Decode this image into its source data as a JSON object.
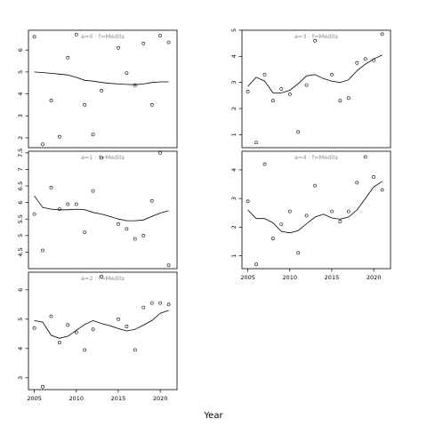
{
  "figure": {
    "xlabel": "Year"
  },
  "chart_data": [
    {
      "type": "scatter",
      "panel_label": "a=0  :  f=Medits",
      "x_ticks": [
        2005,
        2010,
        2015,
        2020
      ],
      "y_ticks": [
        2,
        3,
        4,
        5,
        6
      ],
      "xlim": [
        2004.3,
        2022.0
      ],
      "ylim": [
        1.55,
        6.9
      ],
      "show_x_axis": false,
      "series": [
        {
          "kind": "points",
          "x": [
            2005,
            2006,
            2007,
            2008,
            2009,
            2010,
            2011,
            2012,
            2013,
            2015,
            2016,
            2017,
            2018,
            2019,
            2020,
            2021
          ],
          "y": [
            6.6,
            1.7,
            3.7,
            2.05,
            5.65,
            6.7,
            3.5,
            2.15,
            4.15,
            6.1,
            4.95,
            4.4,
            6.3,
            3.5,
            6.65,
            6.35
          ]
        },
        {
          "kind": "line",
          "x": [
            2005,
            2006,
            2007,
            2008,
            2009,
            2010,
            2011,
            2012,
            2013,
            2014,
            2015,
            2016,
            2017,
            2018,
            2019,
            2020,
            2021
          ],
          "y": [
            5.0,
            4.97,
            4.94,
            4.9,
            4.86,
            4.75,
            4.62,
            4.58,
            4.52,
            4.48,
            4.45,
            4.43,
            4.42,
            4.45,
            4.52,
            4.55,
            4.55
          ]
        }
      ]
    },
    {
      "type": "scatter",
      "panel_label": "a=1  :  f=Medits",
      "x_ticks": [
        2005,
        2010,
        2015,
        2020
      ],
      "y_ticks": [
        4.5,
        5.0,
        5.5,
        6.0,
        6.5,
        7.0,
        7.5
      ],
      "xlim": [
        2004.3,
        2022.0
      ],
      "ylim": [
        4.0,
        7.55
      ],
      "show_x_axis": false,
      "series": [
        {
          "kind": "points",
          "x": [
            2005,
            2006,
            2007,
            2008,
            2009,
            2010,
            2011,
            2012,
            2013,
            2015,
            2016,
            2017,
            2018,
            2019,
            2020,
            2021
          ],
          "y": [
            5.65,
            4.55,
            6.45,
            5.8,
            5.95,
            5.95,
            5.1,
            6.35,
            7.35,
            5.35,
            5.2,
            4.9,
            5.0,
            6.05,
            7.5,
            4.1
          ]
        },
        {
          "kind": "line",
          "x": [
            2005,
            2006,
            2007,
            2008,
            2009,
            2010,
            2011,
            2012,
            2013,
            2014,
            2015,
            2016,
            2017,
            2018,
            2019,
            2020,
            2021
          ],
          "y": [
            6.2,
            5.85,
            5.8,
            5.78,
            5.78,
            5.8,
            5.78,
            5.7,
            5.65,
            5.58,
            5.5,
            5.45,
            5.45,
            5.47,
            5.58,
            5.68,
            5.75
          ]
        }
      ]
    },
    {
      "type": "scatter",
      "panel_label": "a=2  :  f=Medits",
      "x_ticks": [
        2005,
        2010,
        2015,
        2020
      ],
      "y_ticks": [
        3,
        4,
        5,
        6
      ],
      "xlim": [
        2004.3,
        2022.0
      ],
      "ylim": [
        2.6,
        6.6
      ],
      "show_x_axis": true,
      "series": [
        {
          "kind": "points",
          "x": [
            2005,
            2006,
            2007,
            2008,
            2009,
            2010,
            2011,
            2012,
            2013,
            2015,
            2016,
            2017,
            2018,
            2019,
            2020,
            2021
          ],
          "y": [
            4.7,
            2.7,
            5.1,
            4.2,
            4.8,
            4.55,
            3.95,
            4.65,
            6.45,
            5.0,
            4.75,
            3.95,
            5.4,
            5.55,
            5.55,
            5.5
          ]
        },
        {
          "kind": "line",
          "x": [
            2005,
            2006,
            2007,
            2008,
            2009,
            2010,
            2011,
            2012,
            2013,
            2014,
            2015,
            2016,
            2017,
            2018,
            2019,
            2020,
            2021
          ],
          "y": [
            4.95,
            4.9,
            4.45,
            4.35,
            4.42,
            4.62,
            4.82,
            4.95,
            4.85,
            4.78,
            4.68,
            4.6,
            4.65,
            4.8,
            4.95,
            5.2,
            5.3
          ]
        }
      ]
    },
    {
      "type": "scatter",
      "panel_label": "a=3  :  f=Medits",
      "x_ticks": [
        2005,
        2010,
        2015,
        2020
      ],
      "y_ticks": [
        1,
        2,
        3,
        4,
        5
      ],
      "xlim": [
        2004.3,
        2022.0
      ],
      "ylim": [
        0.5,
        5.0
      ],
      "show_x_axis": false,
      "series": [
        {
          "kind": "points",
          "x": [
            2005,
            2006,
            2007,
            2008,
            2009,
            2010,
            2011,
            2012,
            2013,
            2015,
            2016,
            2017,
            2018,
            2019,
            2020,
            2021
          ],
          "y": [
            2.65,
            0.7,
            3.3,
            2.3,
            2.75,
            2.55,
            1.1,
            2.9,
            4.6,
            3.3,
            2.3,
            2.4,
            3.75,
            3.9,
            3.85,
            4.85
          ]
        },
        {
          "kind": "line",
          "x": [
            2005,
            2006,
            2007,
            2008,
            2009,
            2010,
            2011,
            2012,
            2013,
            2014,
            2015,
            2016,
            2017,
            2018,
            2019,
            2020,
            2021
          ],
          "y": [
            2.85,
            3.2,
            3.05,
            2.6,
            2.6,
            2.7,
            2.95,
            3.25,
            3.3,
            3.15,
            3.05,
            3.0,
            3.1,
            3.45,
            3.7,
            3.9,
            4.05
          ]
        }
      ]
    },
    {
      "type": "scatter",
      "panel_label": "a=4  :  f=Medits",
      "x_ticks": [
        2005,
        2010,
        2015,
        2020
      ],
      "y_ticks": [
        1,
        2,
        3,
        4
      ],
      "xlim": [
        2004.3,
        2022.0
      ],
      "ylim": [
        0.55,
        4.65
      ],
      "show_x_axis": true,
      "series": [
        {
          "kind": "points",
          "x": [
            2005,
            2006,
            2007,
            2008,
            2009,
            2010,
            2011,
            2012,
            2013,
            2015,
            2016,
            2017,
            2018,
            2019,
            2020,
            2021
          ],
          "y": [
            2.9,
            0.7,
            4.2,
            1.6,
            2.1,
            2.55,
            1.1,
            2.4,
            3.45,
            2.55,
            2.2,
            2.55,
            3.55,
            4.45,
            3.75,
            3.3
          ]
        },
        {
          "kind": "line",
          "x": [
            2005,
            2006,
            2007,
            2008,
            2009,
            2010,
            2011,
            2012,
            2013,
            2014,
            2015,
            2016,
            2017,
            2018,
            2019,
            2020,
            2021
          ],
          "y": [
            2.6,
            2.3,
            2.3,
            2.15,
            1.85,
            1.8,
            1.88,
            2.12,
            2.35,
            2.45,
            2.32,
            2.28,
            2.35,
            2.6,
            3.0,
            3.4,
            3.6
          ]
        }
      ]
    }
  ]
}
